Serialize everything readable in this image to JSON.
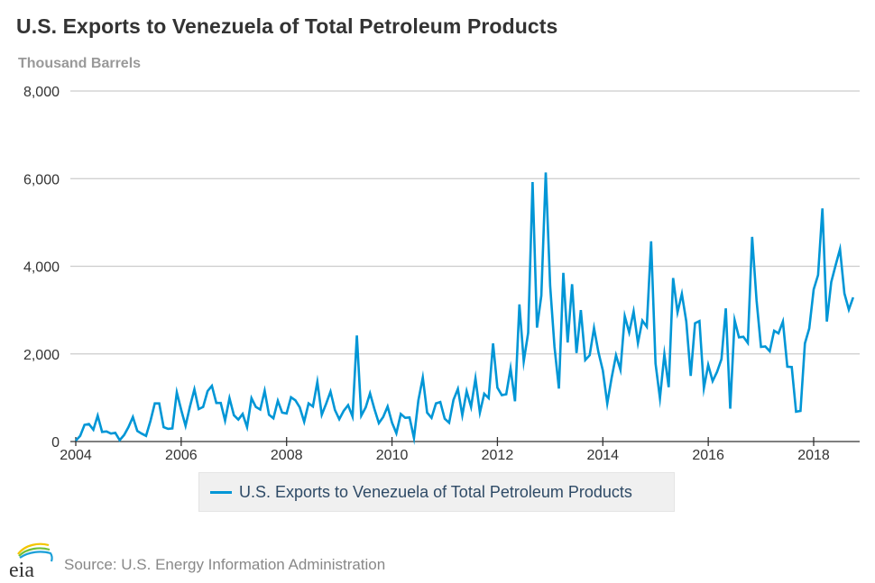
{
  "chart_data": {
    "type": "line",
    "title": "U.S. Exports to Venezuela of Total Petroleum Products",
    "ylabel": "Thousand Barrels",
    "xlabel": "",
    "ylim": [
      0,
      8000
    ],
    "yticks": [
      0,
      2000,
      4000,
      6000,
      8000
    ],
    "ytick_labels": [
      "0",
      "2,000",
      "4,000",
      "6,000",
      "8,000"
    ],
    "xticks": [
      2004,
      2006,
      2008,
      2010,
      2012,
      2014,
      2016,
      2018
    ],
    "xtick_labels": [
      "2004",
      "2006",
      "2008",
      "2010",
      "2012",
      "2014",
      "2016",
      "2018"
    ],
    "x_start": "2004-01",
    "frequency": "monthly",
    "grid": true,
    "legend_position": "bottom-center",
    "series": [
      {
        "name": "U.S. Exports to Venezuela of Total Petroleum Products",
        "color": "#0096d6",
        "values": [
          20,
          130,
          380,
          400,
          270,
          590,
          220,
          230,
          180,
          200,
          30,
          150,
          330,
          560,
          240,
          180,
          130,
          470,
          870,
          870,
          330,
          290,
          300,
          1120,
          720,
          360,
          800,
          1190,
          740,
          790,
          1150,
          1270,
          880,
          880,
          480,
          990,
          600,
          500,
          630,
          330,
          990,
          790,
          730,
          1160,
          610,
          530,
          930,
          660,
          640,
          1010,
          940,
          780,
          450,
          870,
          800,
          1360,
          610,
          860,
          1140,
          720,
          510,
          700,
          830,
          570,
          2420,
          590,
          780,
          1100,
          740,
          420,
          560,
          800,
          430,
          190,
          630,
          540,
          550,
          80,
          940,
          1460,
          660,
          540,
          870,
          900,
          520,
          430,
          950,
          1200,
          600,
          1150,
          790,
          1440,
          660,
          1090,
          990,
          2240,
          1230,
          1060,
          1080,
          1670,
          920,
          3130,
          1830,
          2480,
          5920,
          2600,
          3330,
          6140,
          3550,
          2160,
          1210,
          3850,
          2260,
          3590,
          2020,
          3000,
          1860,
          1970,
          2590,
          2040,
          1620,
          870,
          1450,
          1970,
          1640,
          2860,
          2490,
          2970,
          2250,
          2760,
          2620,
          4570,
          1780,
          990,
          1990,
          1240,
          3730,
          2950,
          3370,
          2740,
          1500,
          2700,
          2750,
          1220,
          1750,
          1380,
          1590,
          1880,
          3040,
          750,
          2770,
          2380,
          2390,
          2250,
          4670,
          3220,
          2160,
          2170,
          2060,
          2530,
          2470,
          2740,
          1710,
          1700,
          680,
          700,
          2240,
          2580,
          3470,
          3800,
          5320,
          2740,
          3640,
          4020,
          4390,
          3380,
          3010,
          3290
        ]
      }
    ]
  },
  "header": {
    "title": "U.S. Exports to Venezuela of Total Petroleum Products",
    "units": "Thousand Barrels"
  },
  "legend": {
    "label": "U.S. Exports to Venezuela of Total Petroleum Products",
    "color": "#0096d6"
  },
  "footer": {
    "logo_text": "eia",
    "source": "Source: U.S. Energy Information Administration"
  }
}
